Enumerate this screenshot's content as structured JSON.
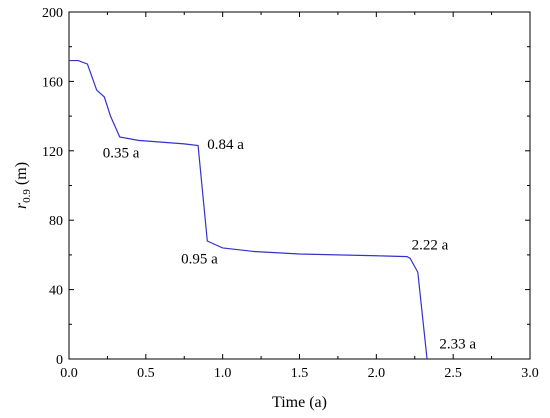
{
  "chart_data": {
    "type": "line",
    "title": "",
    "xlabel": "Time (a)",
    "ylabel_main": "r",
    "ylabel_sub": "0.9",
    "ylabel_unit": " (m)",
    "xlim": [
      0,
      3.0
    ],
    "ylim": [
      0,
      200
    ],
    "x_ticks": [
      "0.0",
      "0.5",
      "1.0",
      "1.5",
      "2.0",
      "2.5",
      "3.0"
    ],
    "x_tick_values": [
      0,
      0.5,
      1.0,
      1.5,
      2.0,
      2.5,
      3.0
    ],
    "y_ticks": [
      "0",
      "40",
      "80",
      "120",
      "160",
      "200"
    ],
    "y_tick_values": [
      0,
      40,
      80,
      120,
      160,
      200
    ],
    "grid": false,
    "line_color": "#3333cc",
    "series": [
      {
        "x": [
          0.0,
          0.06,
          0.12,
          0.18,
          0.23,
          0.27,
          0.33,
          0.45,
          0.6,
          0.75,
          0.84,
          0.9,
          0.95,
          1.0,
          1.2,
          1.5,
          2.0,
          2.2,
          2.22,
          2.27,
          2.33
        ],
        "y": [
          172,
          172,
          170,
          155,
          151,
          140,
          128,
          126,
          125,
          124,
          123,
          68,
          66,
          64,
          62,
          60.5,
          59.5,
          59,
          58,
          50,
          0
        ]
      }
    ],
    "annotations": [
      {
        "text": "0.35 a",
        "x": 0.22,
        "y": 116
      },
      {
        "text": "0.84 a",
        "x": 0.9,
        "y": 121
      },
      {
        "text": "0.95 a",
        "x": 0.73,
        "y": 55
      },
      {
        "text": "2.22 a",
        "x": 2.23,
        "y": 63
      },
      {
        "text": "2.33 a",
        "x": 2.41,
        "y": 6
      }
    ]
  }
}
